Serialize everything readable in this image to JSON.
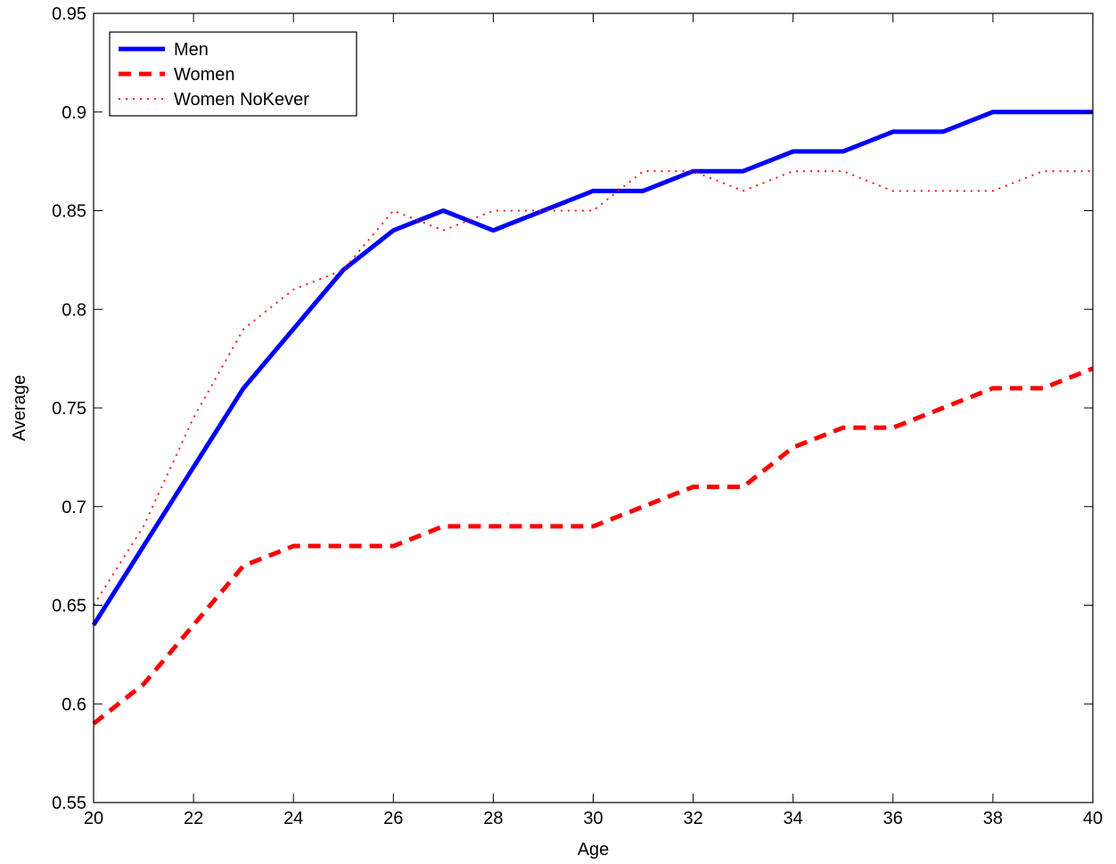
{
  "chart_data": {
    "type": "line",
    "xlabel": "Age",
    "ylabel": "Average",
    "xlim": [
      20,
      40
    ],
    "ylim": [
      0.55,
      0.95
    ],
    "grid": false,
    "legend_position": "top-left",
    "x_ticks": [
      20,
      22,
      24,
      26,
      28,
      30,
      32,
      34,
      36,
      38,
      40
    ],
    "x_tick_labels": [
      "20",
      "22",
      "24",
      "26",
      "28",
      "30",
      "32",
      "34",
      "36",
      "38",
      "40"
    ],
    "y_ticks": [
      0.55,
      0.6,
      0.65,
      0.7,
      0.75,
      0.8,
      0.85,
      0.9,
      0.95
    ],
    "y_tick_labels": [
      "0.55",
      "0.6",
      "0.65",
      "0.7",
      "0.75",
      "0.8",
      "0.85",
      "0.9",
      "0.95"
    ],
    "x": [
      20,
      21,
      22,
      23,
      24,
      25,
      26,
      27,
      28,
      29,
      30,
      31,
      32,
      33,
      34,
      35,
      36,
      37,
      38,
      39,
      40
    ],
    "series": [
      {
        "name": "Men",
        "color": "#0000ff",
        "style": "solid",
        "values": [
          0.64,
          0.68,
          0.72,
          0.76,
          0.79,
          0.82,
          0.84,
          0.85,
          0.84,
          0.85,
          0.86,
          0.86,
          0.87,
          0.87,
          0.88,
          0.88,
          0.89,
          0.89,
          0.9,
          0.9,
          0.9
        ]
      },
      {
        "name": "Women",
        "color": "#ff0000",
        "style": "dashed",
        "values": [
          0.59,
          0.61,
          0.64,
          0.67,
          0.68,
          0.68,
          0.68,
          0.69,
          0.69,
          0.69,
          0.69,
          0.7,
          0.71,
          0.71,
          0.73,
          0.74,
          0.74,
          0.75,
          0.76,
          0.76,
          0.77
        ]
      },
      {
        "name": "Women NoKever",
        "color": "#ff0000",
        "style": "dotted",
        "values": [
          0.65,
          0.69,
          0.745,
          0.79,
          0.81,
          0.82,
          0.85,
          0.84,
          0.85,
          0.85,
          0.85,
          0.87,
          0.87,
          0.86,
          0.87,
          0.87,
          0.86,
          0.86,
          0.86,
          0.87,
          0.87
        ]
      }
    ]
  }
}
